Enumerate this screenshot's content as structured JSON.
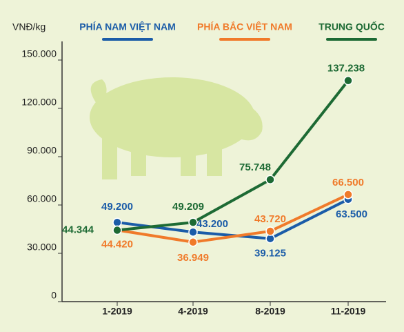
{
  "chart_data": {
    "type": "line",
    "y_unit_label": "VNĐ/kg",
    "categories": [
      "1-2019",
      "4-2019",
      "8-2019",
      "11-2019"
    ],
    "series": [
      {
        "name": "PHÍA NAM VIỆT NAM",
        "color": "#1b5ca8",
        "values": [
          49200,
          43200,
          39125,
          63500
        ],
        "value_labels": [
          "49.200",
          "43.200",
          "39.125",
          "63.500"
        ]
      },
      {
        "name": "PHÍA BẮC VIỆT NAM",
        "color": "#f07a2a",
        "values": [
          44420,
          36949,
          43720,
          66500
        ],
        "value_labels": [
          "44.420",
          "36.949",
          "43.720",
          "66.500"
        ]
      },
      {
        "name": "TRUNG QUỐC",
        "color": "#1d6a34",
        "values": [
          44344,
          49209,
          75748,
          137238
        ],
        "value_labels": [
          "44.344",
          "49.209",
          "75.748",
          "137.238"
        ]
      }
    ],
    "ylim": [
      0,
      150000
    ],
    "yticks": [
      0,
      {
        "value": 30000,
        "label": "30.000"
      },
      {
        "value": 60000,
        "label": "60.000"
      },
      {
        "value": 90000,
        "label": "90.000"
      },
      {
        "value": 120000,
        "label": "120.000"
      },
      {
        "value": 150000,
        "label": "150.000"
      }
    ],
    "grid": false
  }
}
